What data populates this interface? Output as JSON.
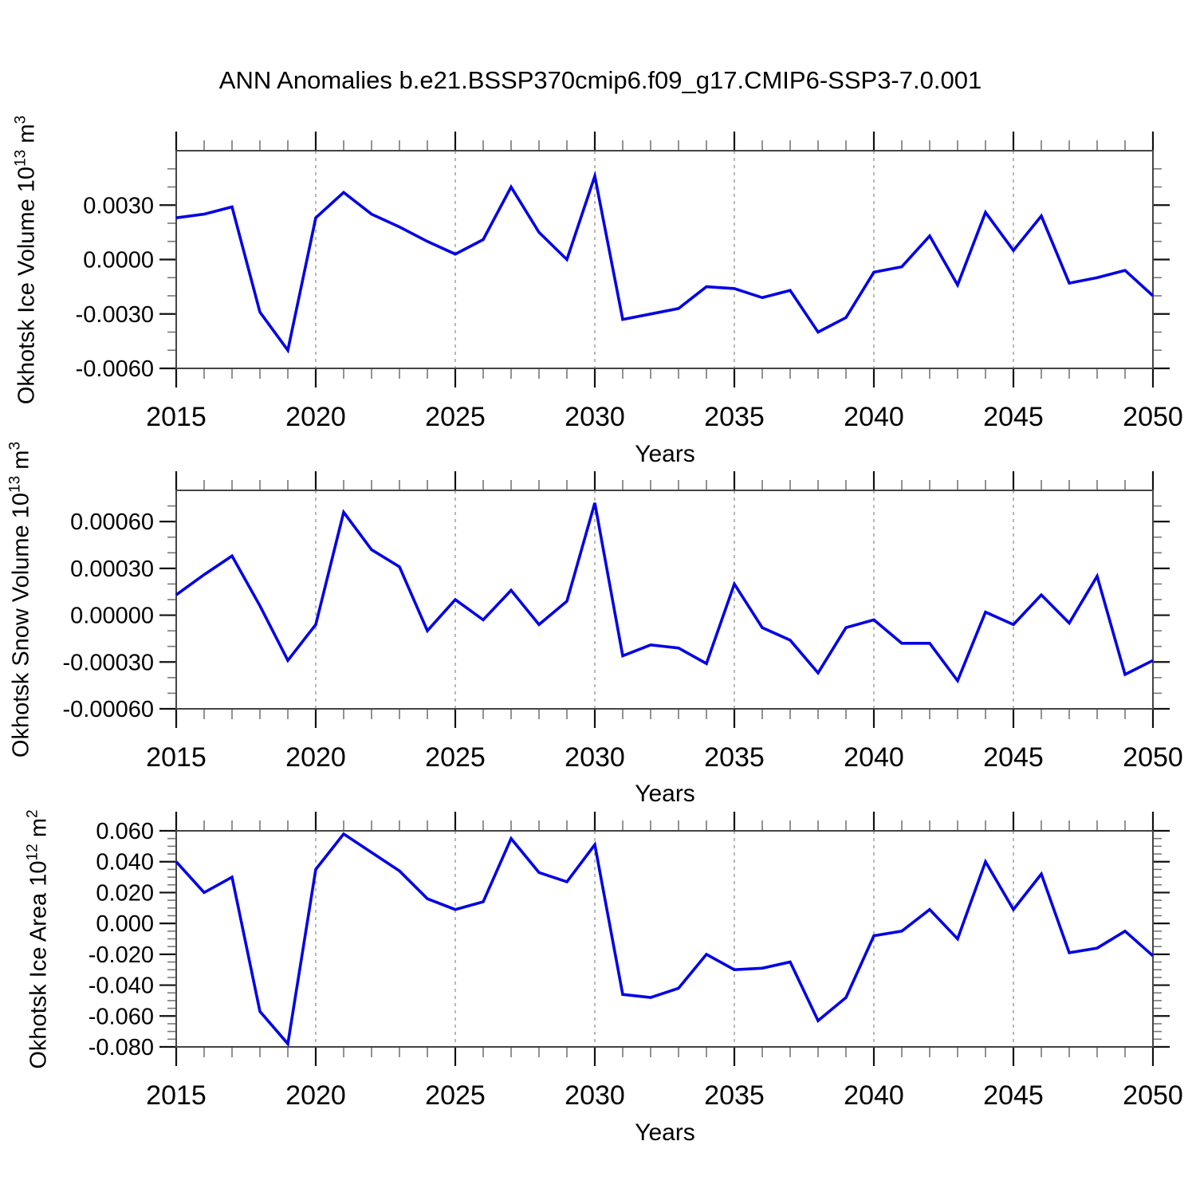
{
  "title": "ANN Anomalies b.e21.BSSP370cmip6.f09_g17.CMIP6-SSP3-7.0.001",
  "colors": {
    "line": "#0202E6",
    "grid": "#999999",
    "frame": "#444444",
    "tick": "#111111",
    "minor": "#777777",
    "text": "#000000",
    "background": "#ffffff"
  },
  "chart_data": [
    {
      "type": "line",
      "id": "ice-volume",
      "ylabel": "Okhotsk Ice Volume 10^13 m^3",
      "ylabel_prefix": "Okhotsk Ice Volume 10",
      "ylabel_sup1": "13",
      "ylabel_mid": " m",
      "ylabel_sup2": "3",
      "xlabel": "Years",
      "xlim": [
        2015,
        2050
      ],
      "ylim": [
        -0.006,
        0.006
      ],
      "grid": "vertical-dashed",
      "legend": "none",
      "xticks": [
        2015,
        2020,
        2025,
        2030,
        2035,
        2040,
        2045,
        2050
      ],
      "xtick_labels": [
        "2015",
        "2020",
        "2025",
        "2030",
        "2035",
        "2040",
        "2045",
        "2050"
      ],
      "grid_x": [
        2020,
        2025,
        2030,
        2035,
        2040,
        2045
      ],
      "yticks": [
        0.003,
        0.0,
        -0.003,
        -0.006
      ],
      "ytick_labels": [
        "0.0030",
        "0.0000",
        "-0.0030",
        "-0.0060"
      ],
      "minor_y_step": 0.001,
      "x": [
        2015,
        2016,
        2017,
        2018,
        2019,
        2020,
        2021,
        2022,
        2023,
        2024,
        2025,
        2026,
        2027,
        2028,
        2029,
        2030,
        2031,
        2032,
        2033,
        2034,
        2035,
        2036,
        2037,
        2038,
        2039,
        2040,
        2041,
        2042,
        2043,
        2044,
        2045,
        2046,
        2047,
        2048,
        2049,
        2050
      ],
      "values": [
        0.0023,
        0.0025,
        0.0029,
        -0.0029,
        -0.005,
        0.0023,
        0.0037,
        0.0025,
        0.0018,
        0.001,
        0.0003,
        0.0011,
        0.004,
        0.0015,
        0.0,
        0.0046,
        -0.0033,
        -0.003,
        -0.0027,
        -0.0015,
        -0.0016,
        -0.0021,
        -0.0017,
        -0.004,
        -0.0032,
        -0.0007,
        -0.0004,
        0.0013,
        -0.0014,
        0.0026,
        0.0005,
        0.0024,
        -0.0013,
        -0.001,
        -0.0006,
        -0.002
      ]
    },
    {
      "type": "line",
      "id": "snow-volume",
      "ylabel": "Okhotsk Snow Volume 10^13 m^3",
      "ylabel_prefix": "Okhotsk Snow Volume 10",
      "ylabel_sup1": "13",
      "ylabel_mid": " m",
      "ylabel_sup2": "3",
      "xlabel": "Years",
      "xlim": [
        2015,
        2050
      ],
      "ylim": [
        -0.0006,
        0.0008
      ],
      "grid": "vertical-dashed",
      "legend": "none",
      "xticks": [
        2015,
        2020,
        2025,
        2030,
        2035,
        2040,
        2045,
        2050
      ],
      "xtick_labels": [
        "2015",
        "2020",
        "2025",
        "2030",
        "2035",
        "2040",
        "2045",
        "2050"
      ],
      "grid_x": [
        2020,
        2025,
        2030,
        2035,
        2040,
        2045
      ],
      "yticks": [
        0.0006,
        0.0003,
        0.0,
        -0.0003,
        -0.0006
      ],
      "ytick_labels": [
        "0.00060",
        "0.00030",
        "0.00000",
        "-0.00030",
        "-0.00060"
      ],
      "minor_y_step": 0.0001,
      "x": [
        2015,
        2016,
        2017,
        2018,
        2019,
        2020,
        2021,
        2022,
        2023,
        2024,
        2025,
        2026,
        2027,
        2028,
        2029,
        2030,
        2031,
        2032,
        2033,
        2034,
        2035,
        2036,
        2037,
        2038,
        2039,
        2040,
        2041,
        2042,
        2043,
        2044,
        2045,
        2046,
        2047,
        2048,
        2049,
        2050
      ],
      "values": [
        0.00013,
        0.00026,
        0.00038,
        6e-05,
        -0.00029,
        -6e-05,
        0.00066,
        0.00042,
        0.00031,
        -0.0001,
        0.0001,
        -3e-05,
        0.00016,
        -6e-05,
        9e-05,
        0.00072,
        -0.00026,
        -0.00019,
        -0.00021,
        -0.00031,
        0.0002,
        -8e-05,
        -0.00016,
        -0.00037,
        -8e-05,
        -3e-05,
        -0.00018,
        -0.00018,
        -0.00042,
        2e-05,
        -6e-05,
        0.00013,
        -5e-05,
        0.00025,
        -0.00038,
        -0.00029
      ]
    },
    {
      "type": "line",
      "id": "ice-area",
      "ylabel": "Okhotsk Ice Area 10^12 m^2",
      "ylabel_prefix": "Okhotsk Ice Area 10",
      "ylabel_sup1": "12",
      "ylabel_mid": " m",
      "ylabel_sup2": "2",
      "xlabel": "Years",
      "xlim": [
        2015,
        2050
      ],
      "ylim": [
        -0.08,
        0.06
      ],
      "grid": "vertical-dashed",
      "legend": "none",
      "xticks": [
        2015,
        2020,
        2025,
        2030,
        2035,
        2040,
        2045,
        2050
      ],
      "xtick_labels": [
        "2015",
        "2020",
        "2025",
        "2030",
        "2035",
        "2040",
        "2045",
        "2050"
      ],
      "grid_x": [
        2020,
        2025,
        2030,
        2035,
        2040,
        2045
      ],
      "yticks": [
        0.06,
        0.04,
        0.02,
        0.0,
        -0.02,
        -0.04,
        -0.06,
        -0.08
      ],
      "ytick_labels": [
        "0.060",
        "0.040",
        "0.020",
        "0.000",
        "-0.020",
        "-0.040",
        "-0.060",
        "-0.080"
      ],
      "minor_y_step": 0.005,
      "x": [
        2015,
        2016,
        2017,
        2018,
        2019,
        2020,
        2021,
        2022,
        2023,
        2024,
        2025,
        2026,
        2027,
        2028,
        2029,
        2030,
        2031,
        2032,
        2033,
        2034,
        2035,
        2036,
        2037,
        2038,
        2039,
        2040,
        2041,
        2042,
        2043,
        2044,
        2045,
        2046,
        2047,
        2048,
        2049,
        2050
      ],
      "values": [
        0.04,
        0.02,
        0.03,
        -0.057,
        -0.078,
        0.035,
        0.058,
        0.046,
        0.034,
        0.016,
        0.009,
        0.014,
        0.055,
        0.033,
        0.027,
        0.051,
        -0.046,
        -0.048,
        -0.042,
        -0.02,
        -0.03,
        -0.029,
        -0.025,
        -0.063,
        -0.048,
        -0.008,
        -0.005,
        0.009,
        -0.01,
        0.04,
        0.009,
        0.032,
        -0.019,
        -0.016,
        -0.005,
        -0.021
      ]
    }
  ]
}
